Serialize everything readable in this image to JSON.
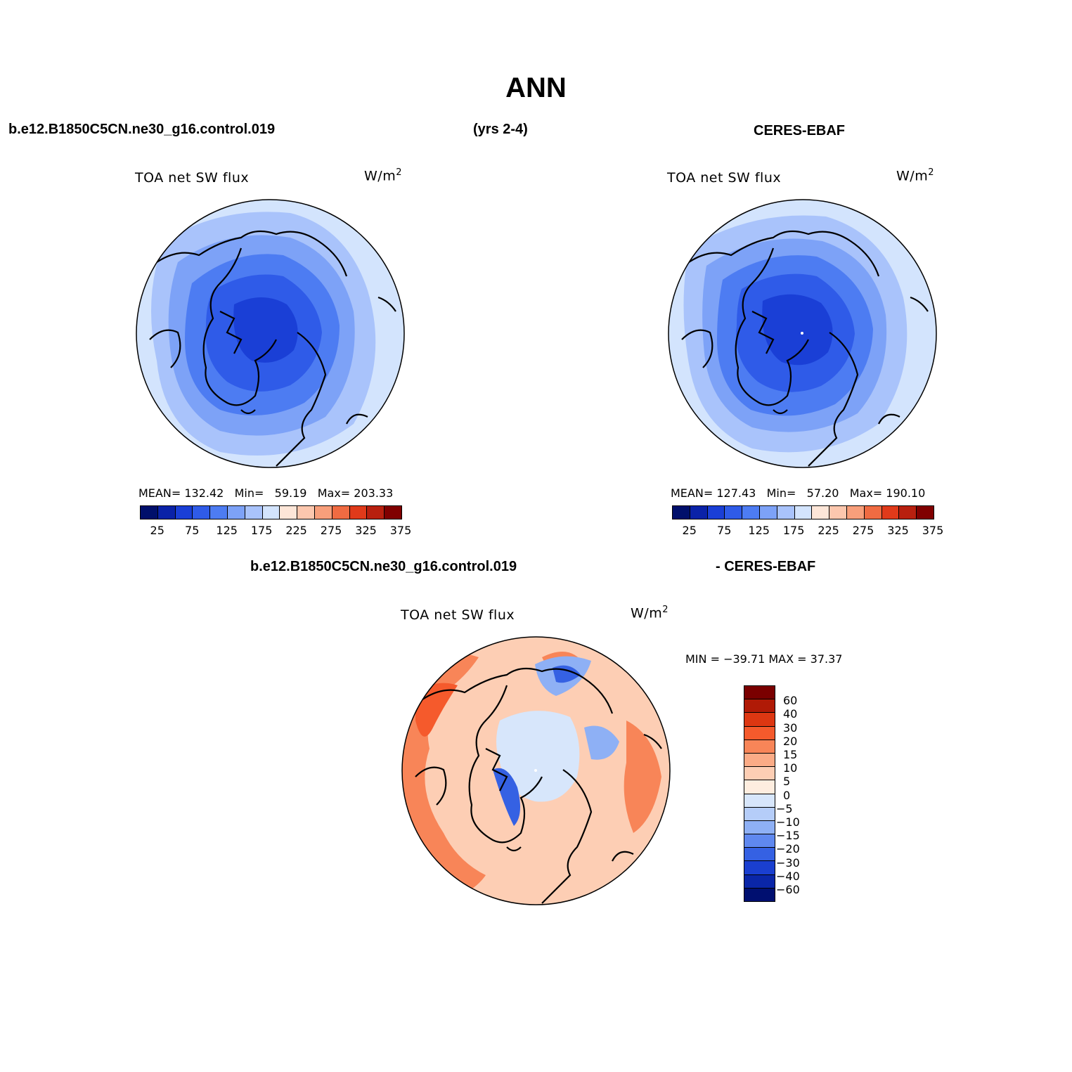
{
  "title": "ANN",
  "header": {
    "case_name": "b.e12.B1850C5CN.ne30_g16.control.019",
    "years": "(yrs 2-4)",
    "obs_name": "CERES-EBAF"
  },
  "diff_header": {
    "left": "b.e12.B1850C5CN.ne30_g16.control.019",
    "right": "- CERES-EBAF"
  },
  "panels": [
    {
      "variable": "TOA net SW flux",
      "units": "W/m",
      "units_sup": "2",
      "stats": {
        "mean_label": "MEAN=",
        "mean": "132.42",
        "min_label": "Min=",
        "min": "59.19",
        "max_label": "Max=",
        "max": "203.33"
      }
    },
    {
      "variable": "TOA net SW flux",
      "units": "W/m",
      "units_sup": "2",
      "stats": {
        "mean_label": "MEAN=",
        "mean": "127.43",
        "min_label": "Min=",
        "min": "57.20",
        "max_label": "Max=",
        "max": "190.10"
      }
    },
    {
      "variable": "TOA net SW flux",
      "units": "W/m",
      "units_sup": "2",
      "stats_text": "MIN = −39.71 MAX =   37.37"
    }
  ],
  "colorbar_abs": {
    "colors": [
      "#000f6b",
      "#0a22a8",
      "#1a3fd6",
      "#2f5be8",
      "#4d7cf2",
      "#7da2f7",
      "#a9c3fb",
      "#d3e4fd",
      "#fde6d8",
      "#fcc7ae",
      "#f89f7b",
      "#f06b42",
      "#e03a1a",
      "#b8200f",
      "#800000"
    ],
    "labels": [
      "25",
      "75",
      "125",
      "175",
      "225",
      "275",
      "325",
      "375"
    ]
  },
  "colorbar_diff": {
    "colors": [
      "#7a0000",
      "#b01a06",
      "#dd3712",
      "#f55a2c",
      "#f88558",
      "#fbab86",
      "#fdceb4",
      "#feeddf",
      "#d7e6fb",
      "#b5cdf9",
      "#8eb0f5",
      "#5f88ef",
      "#3561e3",
      "#1a3fd0",
      "#0a26a8",
      "#000f70"
    ],
    "labels": [
      "60",
      "40",
      "30",
      "20",
      "15",
      "10",
      "5",
      "0",
      "−5",
      "−10",
      "−15",
      "−20",
      "−30",
      "−40",
      "−60"
    ]
  },
  "map_colors": {
    "abs_outer": "#d3e4fd",
    "abs_ring1": "#a9c3fb",
    "abs_ring2": "#7da2f7",
    "abs_ring3": "#4d7cf2",
    "abs_ring4": "#2f5be8",
    "abs_core": "#1a3fd6",
    "diff_base": "#fdceb4",
    "diff_pos": "#f88558",
    "diff_pos2": "#f55a2c",
    "diff_neg": "#d7e6fb",
    "diff_neg2": "#8eb0f5",
    "diff_neg3": "#3561e3",
    "land": "#000000"
  }
}
